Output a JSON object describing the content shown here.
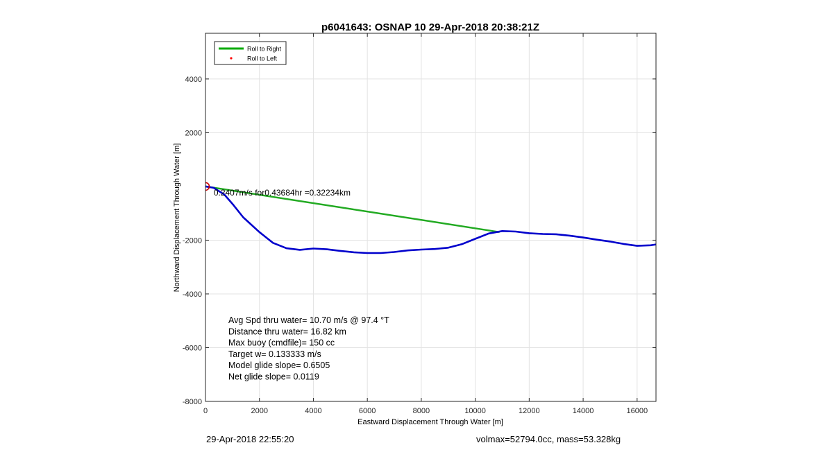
{
  "chart_data": {
    "type": "line",
    "title": "p6041643: OSNAP 10 29-Apr-2018 20:38:21Z",
    "xlabel": "Eastward Displacement Through Water [m]",
    "ylabel": "Northward Displacement Through Water [m]",
    "xlim": [
      0,
      16700
    ],
    "ylim": [
      -8000,
      5700
    ],
    "xticks": [
      0,
      2000,
      4000,
      6000,
      8000,
      10000,
      12000,
      14000,
      16000
    ],
    "yticks": [
      -8000,
      -6000,
      -4000,
      -2000,
      2000,
      4000
    ],
    "grid": true,
    "legend_position": "top-left",
    "legend": [
      {
        "label": "Roll to Right",
        "color": "#00aa00",
        "marker": "line"
      },
      {
        "label": "Roll to Left",
        "color": "#ff0000",
        "marker": "dot"
      }
    ],
    "series": [
      {
        "name": "Roll to Right",
        "color": "#22aa22",
        "x": [
          0,
          10900
        ],
        "y": [
          0,
          -1700
        ]
      },
      {
        "color": "#0000cc",
        "x": [
          0,
          300,
          700,
          1000,
          1400,
          2000,
          2500,
          3000,
          3500,
          4000,
          4500,
          5000,
          5500,
          6000,
          6500,
          7000,
          7500,
          8000,
          8500,
          9000,
          9500,
          10000,
          10500,
          11000,
          11500,
          12000,
          12500,
          13000,
          13500,
          14000,
          14500,
          15000,
          15500,
          16000,
          16500,
          16700
        ],
        "y": [
          0,
          -50,
          -300,
          -650,
          -1150,
          -1700,
          -2100,
          -2300,
          -2360,
          -2310,
          -2340,
          -2400,
          -2450,
          -2480,
          -2480,
          -2440,
          -2380,
          -2350,
          -2330,
          -2280,
          -2150,
          -1950,
          -1750,
          -1660,
          -1680,
          -1740,
          -1770,
          -1780,
          -1830,
          -1900,
          -1980,
          -2050,
          -2140,
          -2210,
          -2190,
          -2160
        ]
      }
    ],
    "annotations": [
      {
        "text": "0.2407m/s for0.43684hr =0.32234km",
        "x": 150,
        "y": -50
      },
      {
        "text": "Avg Spd thru water= 10.70 m/s @  97.4 °T"
      },
      {
        "text": "Distance thru water= 16.82 km"
      },
      {
        "text": "Max buoy (cmdfile)= 150 cc"
      },
      {
        "text": "Target w= 0.133333 m/s"
      },
      {
        "text": "Model glide slope= 0.6505"
      },
      {
        "text": "Net glide slope= 0.0119"
      }
    ],
    "markers": [
      {
        "type": "circle",
        "color": "#cc0000",
        "x": 0,
        "y": 0
      }
    ]
  },
  "footer": {
    "left": "29-Apr-2018 22:55:20",
    "right": "volmax=52794.0cc, mass=53.328kg"
  }
}
